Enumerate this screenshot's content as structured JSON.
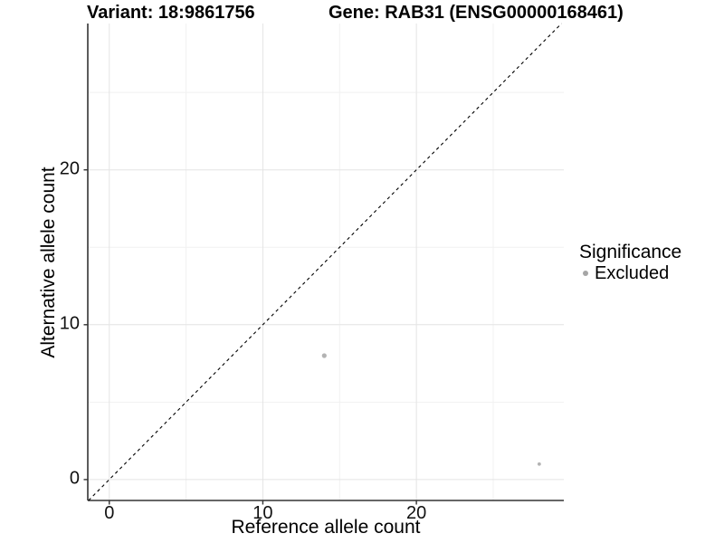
{
  "titles": {
    "left": "Variant: 18:9861756",
    "right": "Gene: RAB31 (ENSG00000168461)"
  },
  "axes": {
    "x_label": "Reference allele count",
    "y_label": "Alternative allele count"
  },
  "legend": {
    "title": "Significance",
    "items": [
      {
        "label": "Excluded",
        "color": "#a6a6a6"
      }
    ]
  },
  "colors": {
    "background": "#ffffff",
    "grid_major": "#e4e4e4",
    "grid_minor": "#f1f1f1",
    "axis_line": "#333333",
    "tick_mark": "#333333",
    "point": "#b3b3b3",
    "dashed_line": "#000000",
    "text": "#000000"
  },
  "chart_data": {
    "type": "scatter",
    "title": "Variant: 18:9861756 — Gene: RAB31 (ENSG00000168461)",
    "xlabel": "Reference allele count",
    "ylabel": "Alternative allele count",
    "xlim": [
      -1.4,
      29.6
    ],
    "ylim": [
      -1.35,
      29.45
    ],
    "x_ticks": [
      0,
      10,
      20
    ],
    "y_ticks": [
      0,
      10,
      20
    ],
    "x_minor_ticks": [
      5,
      15,
      25
    ],
    "y_minor_ticks": [
      5,
      15,
      25
    ],
    "grid": true,
    "legend_position": "right",
    "series": [
      {
        "name": "Excluded",
        "color": "#b3b3b3",
        "points": [
          {
            "x": 14,
            "y": 8,
            "r": 2.6
          },
          {
            "x": 28,
            "y": 1,
            "r": 1.9
          }
        ]
      }
    ],
    "reference_line": {
      "type": "identity",
      "style": "dashed",
      "color": "#000000"
    }
  }
}
